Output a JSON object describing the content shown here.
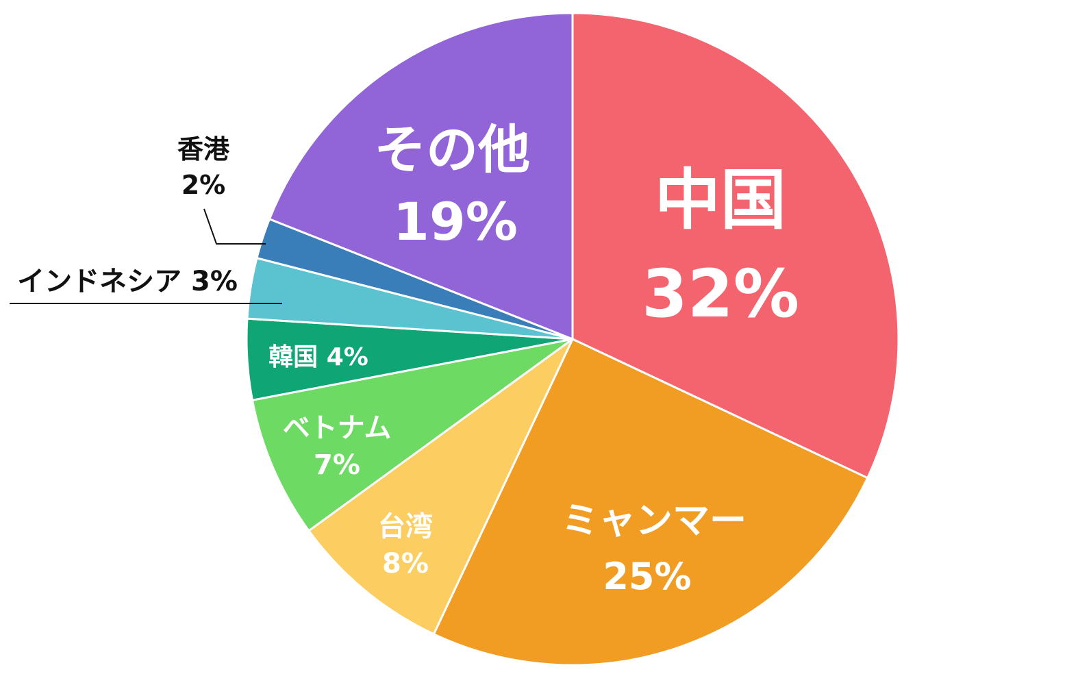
{
  "chart_data": {
    "type": "pie",
    "start": "12 o'clock",
    "direction": "clockwise",
    "slices": [
      {
        "name": "中国",
        "value": 32,
        "value_label": "32%",
        "color": "#F4646F"
      },
      {
        "name": "ミャンマー",
        "value": 25,
        "value_label": "25%",
        "color": "#F19D24"
      },
      {
        "name": "台湾",
        "value": 8,
        "value_label": "8%",
        "color": "#FCCD60"
      },
      {
        "name": "ベトナム",
        "value": 7,
        "value_label": "7%",
        "color": "#6DDA63"
      },
      {
        "name": "韓国",
        "value": 4,
        "value_label": "4%",
        "color": "#0FA575"
      },
      {
        "name": "インドネシア",
        "value": 3,
        "value_label": "3%",
        "color": "#5BC2D0"
      },
      {
        "name": "香港",
        "value": 2,
        "value_label": "2%",
        "color": "#3A7EB9"
      },
      {
        "name": "その他",
        "value": 19,
        "value_label": "19%",
        "color": "#9164D7"
      }
    ]
  }
}
